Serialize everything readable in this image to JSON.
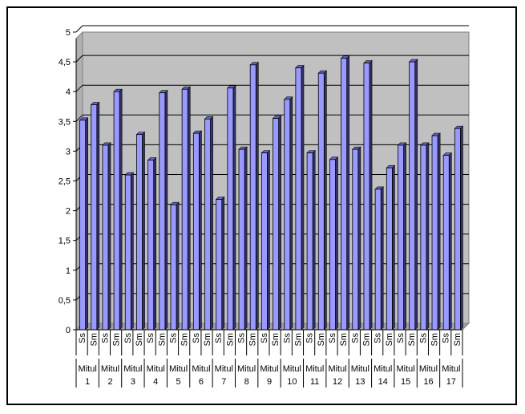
{
  "chart_data": {
    "type": "bar",
    "title": "",
    "xlabel": "",
    "ylabel": "",
    "ylim": [
      0,
      5
    ],
    "yticks": [
      "0",
      "0,5",
      "1",
      "1,5",
      "2",
      "2,5",
      "3",
      "3,5",
      "4",
      "4,5",
      "5"
    ],
    "grid": true,
    "legend": "none",
    "bar_color": "#9999ff",
    "plot_background": "#c0c0c0",
    "group_label_prefix": "Mitul",
    "groups": [
      "1",
      "2",
      "3",
      "4",
      "5",
      "6",
      "7",
      "8",
      "9",
      "10",
      "11",
      "12",
      "13",
      "14",
      "15",
      "16",
      "17"
    ],
    "categories": [
      "Ss",
      "Sm",
      "Ss",
      "Sm",
      "Ss",
      "Sm",
      "Ss",
      "Sm",
      "Ss",
      "Sm",
      "Ss",
      "Sm",
      "Ss",
      "Sm",
      "Ss",
      "Sm",
      "Ss",
      "Sm",
      "Ss",
      "Sm",
      "Ss",
      "Sm",
      "Ss",
      "Sm",
      "Ss",
      "Sm",
      "Ss",
      "Sm",
      "Ss",
      "Sm",
      "Ss",
      "Sm",
      "Ss",
      "Sm"
    ],
    "values": [
      3.52,
      3.78,
      3.1,
      4.0,
      2.6,
      3.28,
      2.85,
      3.98,
      2.1,
      4.04,
      3.3,
      3.54,
      2.19,
      4.06,
      3.03,
      4.45,
      2.97,
      3.55,
      3.87,
      4.4,
      2.97,
      4.31,
      2.86,
      4.56,
      3.03,
      4.48,
      2.36,
      2.72,
      3.1,
      4.5,
      3.1,
      3.26,
      2.93,
      3.38
    ]
  }
}
